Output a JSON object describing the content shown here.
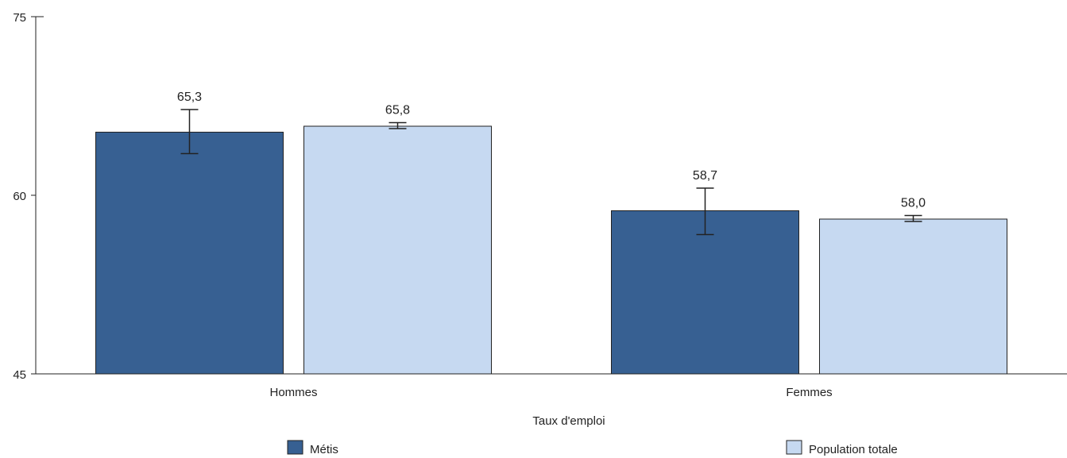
{
  "chart_data": {
    "type": "bar",
    "categories": [
      "Hommes",
      "Femmes"
    ],
    "series": [
      {
        "name": "Métis",
        "color": "#376092",
        "values": [
          65.3,
          58.7
        ],
        "labels": [
          "65,3",
          "58,7"
        ],
        "error_low": [
          63.5,
          56.7
        ],
        "error_high": [
          67.2,
          60.6
        ]
      },
      {
        "name": "Population totale",
        "color": "#c6d9f1",
        "values": [
          65.8,
          58.0
        ],
        "labels": [
          "65,8",
          "58,0"
        ],
        "error_low": [
          65.6,
          57.8
        ],
        "error_high": [
          66.1,
          58.3
        ]
      }
    ],
    "xlabel": "Taux d'emploi",
    "ylabel": "",
    "ylim": [
      45,
      75
    ],
    "yticks": [
      45,
      60,
      75
    ],
    "ytick_labels": [
      "45",
      "60",
      "75"
    ],
    "grid": false,
    "legend_position": "bottom",
    "bar_border_color": "#222222"
  }
}
